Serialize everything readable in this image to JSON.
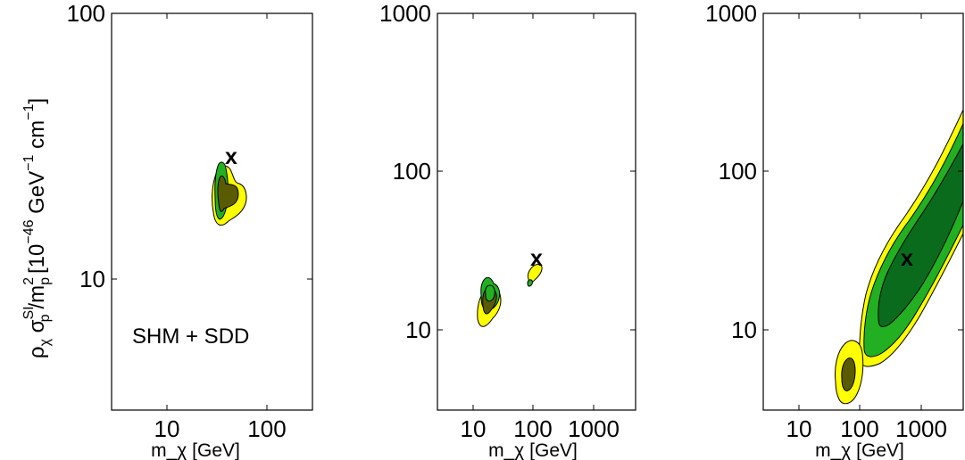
{
  "chart_data": [
    {
      "type": "contour",
      "xlabel": "m_χ [GeV]",
      "ylabel": "ρ_χ σ_p^SI/m_p^2 [10^-46 GeV^-1 cm^-1]",
      "x_scale": "log",
      "y_scale": "log",
      "xlim": [
        3,
        300
      ],
      "ylim": [
        3,
        100
      ],
      "x_tick_labels": [
        "10",
        "100"
      ],
      "y_tick_labels": [
        "10",
        "100"
      ],
      "annotation": "SHM + SDD",
      "marker": {
        "label": "x",
        "x": 50,
        "y": 30
      },
      "contour_levels": [
        "outer (yellow)",
        "middle (light green)",
        "inner (dark)"
      ],
      "regions": [
        {
          "level": "outer",
          "color": "#ffff00",
          "center": [
            40,
            20
          ],
          "x_range": [
            33,
            56
          ],
          "y_range": [
            15.5,
            27
          ]
        },
        {
          "level": "middle",
          "color": "#22b022",
          "center": [
            38,
            21
          ],
          "x_range": [
            35,
            42
          ],
          "y_range": [
            17,
            27.5
          ]
        },
        {
          "level": "inner",
          "color": "#5a5a00",
          "center": [
            42,
            20.5
          ],
          "x_range": [
            37,
            52
          ],
          "y_range": [
            17.5,
            24
          ]
        }
      ]
    },
    {
      "type": "contour",
      "xlabel": "m_χ [GeV]",
      "x_scale": "log",
      "y_scale": "log",
      "xlim": [
        3,
        3000
      ],
      "ylim": [
        3,
        1000
      ],
      "x_tick_labels": [
        "10",
        "100",
        "1000"
      ],
      "y_tick_labels": [
        "10",
        "100",
        "1000"
      ],
      "marker": {
        "label": "x",
        "x": 100,
        "y": 30
      },
      "regions": [
        {
          "level": "outer",
          "color": "#ffff00",
          "center": [
            40,
            14
          ],
          "x_range": [
            30,
            60
          ],
          "y_range": [
            11,
            20
          ]
        },
        {
          "level": "middle",
          "color": "#22b022",
          "center": [
            42,
            17
          ],
          "x_range": [
            33,
            58
          ],
          "y_range": [
            13,
            21
          ]
        },
        {
          "level": "inner",
          "color": "#5a5a00",
          "center": [
            42,
            15
          ],
          "x_range": [
            35,
            55
          ],
          "y_range": [
            12,
            19
          ]
        },
        {
          "level": "outer",
          "color": "#ffff00",
          "center": [
            95,
            22
          ],
          "x_range": [
            80,
            120
          ],
          "y_range": [
            19,
            25
          ]
        }
      ]
    },
    {
      "type": "contour",
      "xlabel": "m_χ [GeV]",
      "x_scale": "log",
      "y_scale": "log",
      "xlim": [
        3,
        3000
      ],
      "ylim": [
        3,
        1000
      ],
      "x_tick_labels": [
        "10",
        "100",
        "1000"
      ],
      "y_tick_labels": [
        "10",
        "100",
        "1000"
      ],
      "marker": {
        "label": "x",
        "x": 450,
        "y": 28
      },
      "regions": [
        {
          "level": "outer",
          "color": "#ffff00",
          "center": [
            55,
            5
          ],
          "x_range": [
            40,
            80
          ],
          "y_range": [
            3,
            7
          ]
        },
        {
          "level": "outer-band",
          "color": "#ffff00",
          "from": [
            100,
            7
          ],
          "to": [
            3000,
            300
          ]
        },
        {
          "level": "middle-band",
          "color": "#22b022",
          "from": [
            110,
            8
          ],
          "to": [
            3000,
            300
          ]
        },
        {
          "level": "inner-band",
          "color": "#0b6b1c",
          "from": [
            170,
            12
          ],
          "to": [
            3000,
            260
          ]
        }
      ]
    }
  ]
}
